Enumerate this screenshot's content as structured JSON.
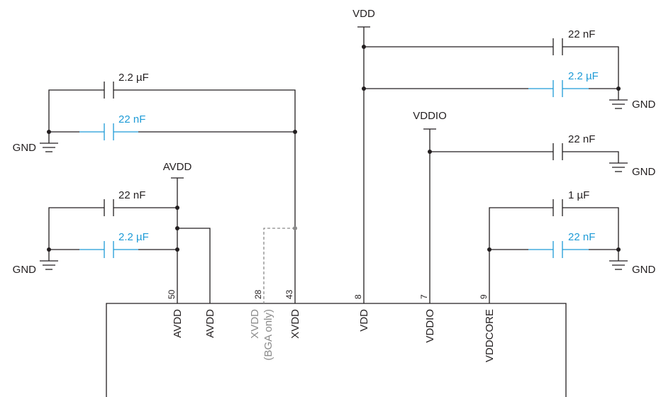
{
  "rails": {
    "vdd": "VDD",
    "vddio": "VDDIO",
    "avdd": "AVDD",
    "gnd": "GND"
  },
  "capacitors": {
    "xvdd_big": "2.2 µF",
    "xvdd_small": "22 nF",
    "avdd_small": "22 nF",
    "avdd_big": "2.2 µF",
    "vdd_small": "22 nF",
    "vdd_big": "2.2 µF",
    "vddio_small": "22 nF",
    "vddcore_big": "1 µF",
    "vddcore_small": "22 nF"
  },
  "pins": {
    "avdd1": {
      "number": "50",
      "name": "AVDD"
    },
    "avdd2": {
      "name": "AVDD"
    },
    "xvdd_bga": {
      "number": "28",
      "name": "XVDD",
      "note": "(BGA only)"
    },
    "xvdd": {
      "number": "43",
      "name": "XVDD"
    },
    "vdd": {
      "number": "8",
      "name": "VDD"
    },
    "vddio": {
      "number": "7",
      "name": "VDDIO"
    },
    "vddcore": {
      "number": "9",
      "name": "VDDCORE"
    }
  },
  "colors": {
    "wire": "#231f20",
    "highlight": "#1e9bd7",
    "optional": "#8a8a8a"
  }
}
